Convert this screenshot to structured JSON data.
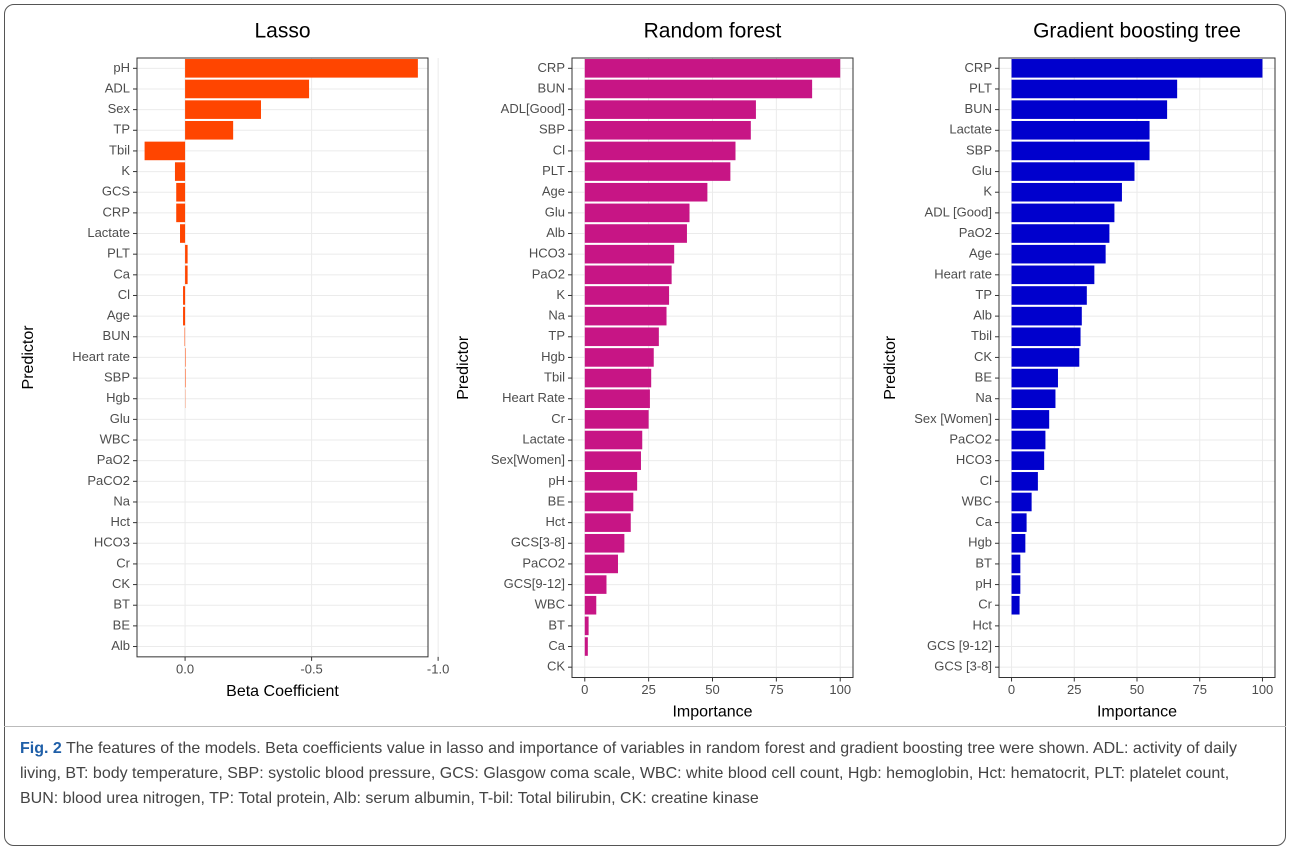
{
  "chart_data": [
    {
      "type": "bar",
      "orientation": "horizontal",
      "title": "Lasso",
      "xlabel": "Beta Coefficient",
      "ylabel": "Predictor",
      "categories": [
        "pH",
        "ADL",
        "Sex",
        "TP",
        "Tbil",
        "K",
        "GCS",
        "CRP",
        "Lactate",
        "PLT",
        "Ca",
        "Cl",
        "Age",
        "BUN",
        "Heart rate",
        "SBP",
        "Hgb",
        "Glu",
        "WBC",
        "PaO2",
        "PaCO2",
        "Na",
        "Hct",
        "HCO3",
        "Cr",
        "CK",
        "BT",
        "BE",
        "Alb"
      ],
      "values": [
        -0.92,
        -0.49,
        -0.3,
        -0.19,
        0.16,
        0.04,
        0.035,
        0.035,
        0.02,
        -0.01,
        -0.01,
        0.008,
        0.008,
        0.002,
        -0.002,
        -0.002,
        -0.001,
        0,
        0,
        0,
        0,
        0,
        0,
        0,
        0,
        0,
        0,
        0,
        0
      ],
      "color": "#ff4500",
      "xlim": [
        0.19,
        -0.96
      ],
      "xticks": [
        {
          "value": 0,
          "label": "0.0"
        },
        -0.5,
        {
          "value": -1,
          "label": "-1.0"
        }
      ],
      "grid": true
    },
    {
      "type": "bar",
      "orientation": "horizontal",
      "title": "Random forest",
      "xlabel": "Importance",
      "ylabel": "Predictor",
      "categories": [
        "CRP",
        "BUN",
        "ADL[Good]",
        "SBP",
        "Cl",
        "PLT",
        "Age",
        "Glu",
        "Alb",
        "HCO3",
        "PaO2",
        "K",
        "Na",
        "TP",
        "Hgb",
        "Tbil",
        "Heart Rate",
        "Cr",
        "Lactate",
        "Sex[Women]",
        "pH",
        "BE",
        "Hct",
        "GCS[3-8]",
        "PaCO2",
        "GCS[9-12]",
        "WBC",
        "BT",
        "Ca",
        "CK"
      ],
      "values": [
        100,
        89,
        67,
        65,
        59,
        57,
        48,
        41,
        40,
        35,
        34,
        33,
        32,
        29,
        27,
        26,
        25.5,
        25,
        22.5,
        22,
        20.5,
        19,
        18,
        15.5,
        13,
        8.5,
        4.5,
        1.5,
        1.2,
        0
      ],
      "color": "#c71585",
      "xlim": [
        -5,
        105
      ],
      "xticks": [
        0,
        25,
        50,
        75,
        100
      ],
      "grid": true
    },
    {
      "type": "bar",
      "orientation": "horizontal",
      "title": "Gradient boosting tree",
      "xlabel": "Importance",
      "ylabel": "Predictor",
      "categories": [
        "CRP",
        "PLT",
        "BUN",
        "Lactate",
        "SBP",
        "Glu",
        "K",
        "ADL [Good]",
        "PaO2",
        "Age",
        "Heart rate",
        "TP",
        "Alb",
        "Tbil",
        "CK",
        "BE",
        "Na",
        "Sex [Women]",
        "PaCO2",
        "HCO3",
        "Cl",
        "WBC",
        "Ca",
        "Hgb",
        "BT",
        "pH",
        "Cr",
        "Hct",
        "GCS [9-12]",
        "GCS [3-8]"
      ],
      "values": [
        100,
        66,
        62,
        55,
        55,
        49,
        44,
        41,
        39,
        37.5,
        33,
        30,
        28,
        27.5,
        27,
        18.5,
        17.5,
        15,
        13.5,
        13,
        10.5,
        8,
        6,
        5.5,
        3.5,
        3.5,
        3.2,
        0,
        0,
        0
      ],
      "color": "#0000cd",
      "xlim": [
        -5,
        105
      ],
      "xticks": [
        0,
        25,
        50,
        75,
        100
      ],
      "grid": true
    }
  ],
  "caption": {
    "label": "Fig. 2",
    "text": "The features of the models. Beta coefficients value in lasso and importance of variables in random forest and gradient boosting tree were shown. ADL: activity of daily living, BT: body temperature, SBP: systolic blood pressure, GCS: Glasgow coma scale, WBC: white blood cell count, Hgb: hemoglobin, Hct: hematocrit, PLT: platelet count, BUN: blood urea nitrogen, TP: Total protein, Alb: serum albumin, T-bil: Total bilirubin, CK: creatine kinase"
  }
}
